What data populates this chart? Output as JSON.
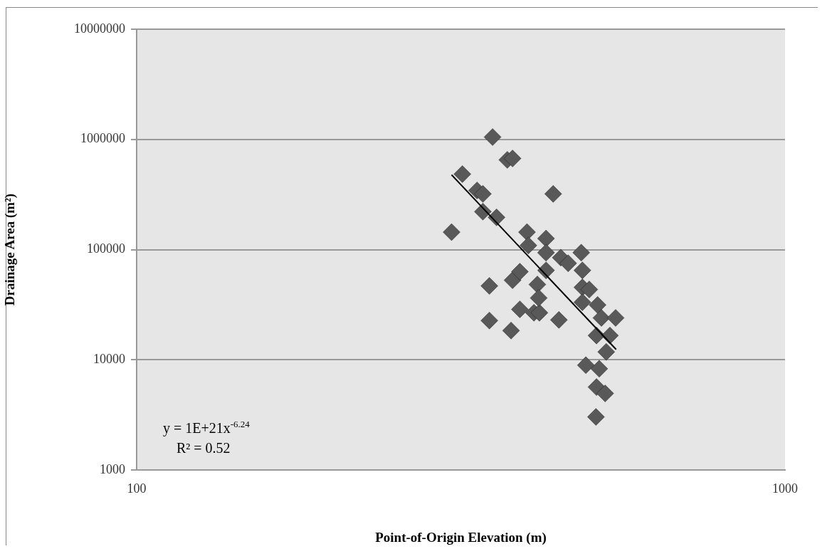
{
  "chart_data": {
    "type": "scatter",
    "xlabel": "Point-of-Origin Elevation (m)",
    "ylabel": "Drainage Area (m²)",
    "log": "xy",
    "xlim": [
      100,
      1000
    ],
    "xticks": [
      100,
      1000
    ],
    "ylim": [
      1000,
      10000000
    ],
    "yticks": [
      1000,
      10000,
      100000,
      1000000,
      10000000
    ],
    "grid": "y",
    "legend": false,
    "marker": "diamond",
    "series": [
      {
        "color": "#595959",
        "x": [
          306,
          318,
          335,
          342,
          342,
          350,
          350,
          354,
          359,
          373,
          380,
          378,
          380,
          390,
          390,
          400,
          402,
          410,
          418,
          415,
          417,
          428,
          428,
          428,
          439,
          448,
          451,
          463,
          485,
          487,
          487,
          499,
          487,
          514,
          521,
          548,
          512,
          537,
          530,
          493,
          517,
          512,
          528,
          511
        ],
        "values": [
          144000,
          484000,
          344000,
          320000,
          221000,
          46800,
          22700,
          1050000,
          196000,
          652000,
          671000,
          18400,
          52700,
          63000,
          28700,
          144000,
          109000,
          26700,
          26700,
          48200,
          36400,
          126000,
          93700,
          64800,
          320000,
          23000,
          84500,
          75100,
          93700,
          64800,
          45400,
          43400,
          33300,
          31400,
          24000,
          24000,
          16600,
          16600,
          11800,
          8930,
          8290,
          5650,
          4950,
          3030
        ]
      },
      {
        "type": "line",
        "color": "#000000",
        "marker": "none",
        "line_style": "solid",
        "x": [
          306,
          549
        ],
        "values": [
          477000,
          12400
        ]
      }
    ],
    "annotations": [
      "y = 1E+21x$^{-6.24}$",
      "R² = 0.52"
    ]
  }
}
